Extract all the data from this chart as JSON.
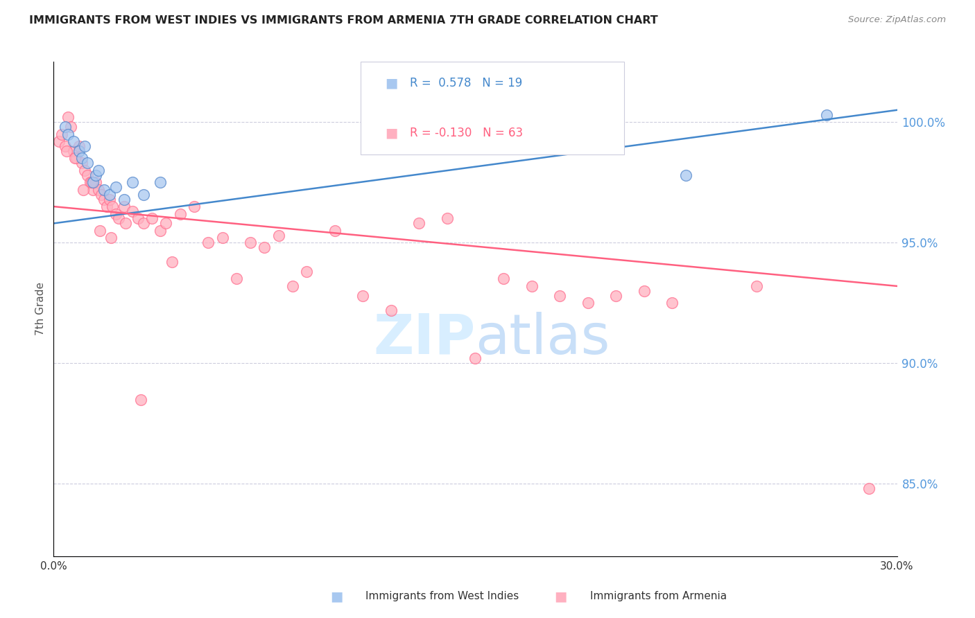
{
  "title": "IMMIGRANTS FROM WEST INDIES VS IMMIGRANTS FROM ARMENIA 7TH GRADE CORRELATION CHART",
  "source": "Source: ZipAtlas.com",
  "ylabel": "7th Grade",
  "y_ticks": [
    85.0,
    90.0,
    95.0,
    100.0
  ],
  "x_min": 0.0,
  "x_max": 30.0,
  "y_min": 82.0,
  "y_max": 102.5,
  "legend_blue_r": "0.578",
  "legend_blue_n": "19",
  "legend_pink_r": "-0.130",
  "legend_pink_n": "63",
  "blue_color": "#A8C8F0",
  "pink_color": "#FFB0C0",
  "blue_edge_color": "#5588CC",
  "pink_edge_color": "#FF7090",
  "blue_line_color": "#4488CC",
  "pink_line_color": "#FF6080",
  "right_axis_color": "#5599DD",
  "watermark_color": "#D8EEFF",
  "blue_scatter_x": [
    0.4,
    0.5,
    0.7,
    0.9,
    1.0,
    1.1,
    1.2,
    1.4,
    1.5,
    1.6,
    1.8,
    2.0,
    2.2,
    2.5,
    2.8,
    3.2,
    3.8,
    22.5,
    27.5
  ],
  "blue_scatter_y": [
    99.8,
    99.5,
    99.2,
    98.8,
    98.5,
    99.0,
    98.3,
    97.5,
    97.8,
    98.0,
    97.2,
    97.0,
    97.3,
    96.8,
    97.5,
    97.0,
    97.5,
    97.8,
    100.3
  ],
  "pink_scatter_x": [
    0.2,
    0.3,
    0.4,
    0.5,
    0.6,
    0.7,
    0.8,
    0.9,
    1.0,
    1.1,
    1.2,
    1.3,
    1.4,
    1.5,
    1.6,
    1.7,
    1.8,
    1.9,
    2.0,
    2.1,
    2.2,
    2.3,
    2.5,
    2.8,
    3.0,
    3.2,
    3.5,
    3.8,
    4.0,
    4.5,
    5.0,
    5.5,
    6.0,
    6.5,
    7.0,
    7.5,
    8.0,
    9.0,
    10.0,
    11.0,
    12.0,
    13.0,
    14.0,
    15.0,
    16.0,
    17.0,
    18.0,
    19.0,
    20.0,
    21.0,
    22.0,
    25.0,
    0.45,
    0.75,
    1.05,
    1.35,
    1.65,
    2.05,
    2.55,
    3.1,
    4.2,
    8.5,
    29.0
  ],
  "pink_scatter_y": [
    99.2,
    99.5,
    99.0,
    100.2,
    99.8,
    98.8,
    98.5,
    99.0,
    98.3,
    98.0,
    97.8,
    97.5,
    97.2,
    97.5,
    97.2,
    97.0,
    96.8,
    96.5,
    96.8,
    96.5,
    96.2,
    96.0,
    96.5,
    96.3,
    96.0,
    95.8,
    96.0,
    95.5,
    95.8,
    96.2,
    96.5,
    95.0,
    95.2,
    93.5,
    95.0,
    94.8,
    95.3,
    93.8,
    95.5,
    92.8,
    92.2,
    95.8,
    96.0,
    90.2,
    93.5,
    93.2,
    92.8,
    92.5,
    92.8,
    93.0,
    92.5,
    93.2,
    98.8,
    98.5,
    97.2,
    97.5,
    95.5,
    95.2,
    95.8,
    88.5,
    94.2,
    93.2,
    84.8
  ],
  "blue_line_x": [
    0.0,
    30.0
  ],
  "blue_line_y": [
    95.8,
    100.5
  ],
  "pink_line_x": [
    0.0,
    30.0
  ],
  "pink_line_y": [
    96.5,
    93.2
  ]
}
